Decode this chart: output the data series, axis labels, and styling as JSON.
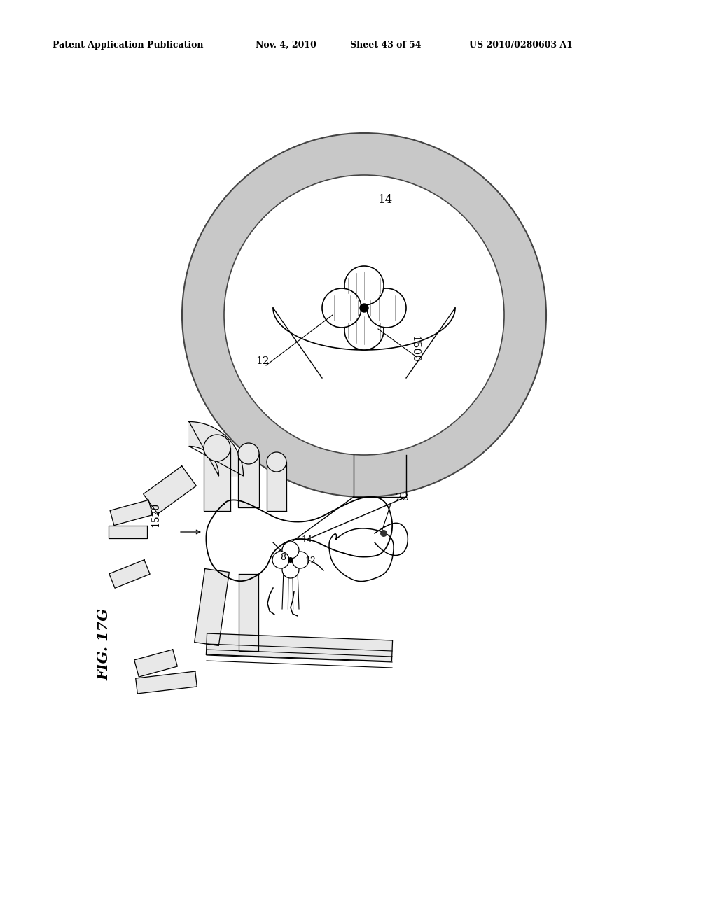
{
  "bg_color": "#ffffff",
  "header_text": "Patent Application Publication",
  "header_date": "Nov. 4, 2010",
  "header_sheet": "Sheet 43 of 54",
  "header_patent": "US 2010/0280603 A1",
  "fig_label": "FIG. 17G",
  "labels": {
    "14_top": "14",
    "12": "12",
    "1500": "1500",
    "22": "22",
    "14_heart": "14",
    "8": "8",
    "12_heart": "12",
    "1520": "1520"
  },
  "ring_gray": "#c8c8c8",
  "ring_edge": "#444444",
  "vessel_fill": "#e8e8e8",
  "vessel_edge": "#333333"
}
